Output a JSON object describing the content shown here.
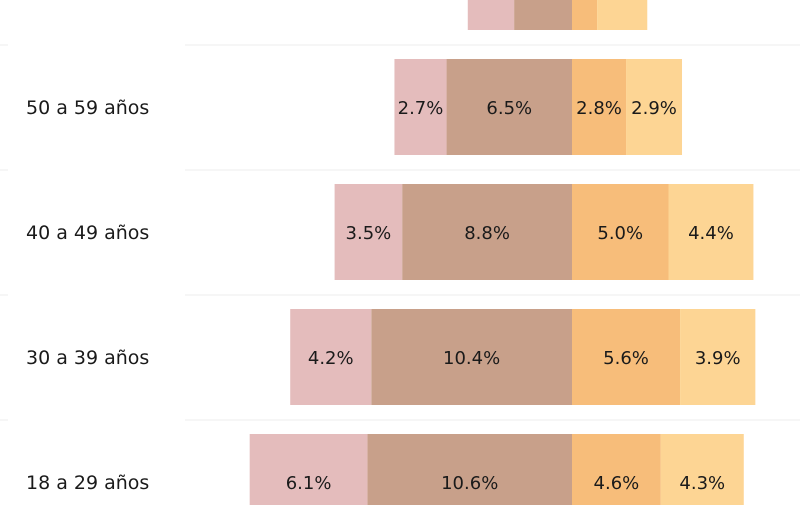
{
  "chart_data": {
    "type": "bar",
    "stacked": "diverging",
    "categories": [
      "18 a 29 años",
      "30 a 39 años",
      "40 a 49 años",
      "50 a 59 años",
      ""
    ],
    "series": [
      {
        "side": "left",
        "color": "#e4bcbc",
        "values": [
          6.1,
          4.2,
          3.5,
          2.7,
          2.4
        ]
      },
      {
        "side": "left",
        "color": "#c8a08a",
        "values": [
          10.6,
          10.4,
          8.8,
          6.5,
          3.0
        ]
      },
      {
        "side": "right",
        "color": "#f7bd7a",
        "values": [
          4.6,
          5.6,
          5.0,
          2.8,
          1.3
        ]
      },
      {
        "side": "right",
        "color": "#fdd594",
        "values": [
          4.3,
          3.9,
          4.4,
          2.9,
          2.6
        ]
      }
    ],
    "value_labels": [
      [
        "6.1%",
        "10.6%",
        "4.6%",
        "4.3%"
      ],
      [
        "4.2%",
        "10.4%",
        "5.6%",
        "3.9%"
      ],
      [
        "3.5%",
        "8.8%",
        "5.0%",
        "4.4%"
      ],
      [
        "2.7%",
        "6.5%",
        "2.8%",
        "2.9%"
      ],
      [
        "",
        "",
        "",
        ""
      ]
    ],
    "grid": true,
    "gridline_color": "#eeeeee"
  }
}
